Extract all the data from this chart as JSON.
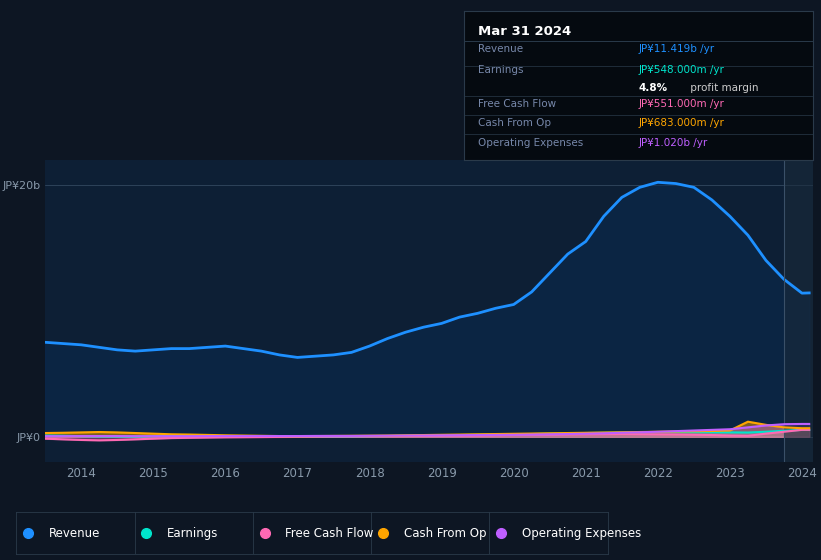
{
  "bg_color": "#0d1623",
  "plot_bg": "#0d1f35",
  "title": "Mar 31 2024",
  "table": {
    "Revenue": {
      "value": "JP¥11.419b /yr",
      "color": "#1e90ff"
    },
    "Earnings": {
      "value": "JP¥548.000m /yr",
      "color": "#00e5cc"
    },
    "profit_margin": "4.8% profit margin",
    "Free Cash Flow": {
      "value": "JP¥551.000m /yr",
      "color": "#ff69b4"
    },
    "Cash From Op": {
      "value": "JP¥683.000m /yr",
      "color": "#ffa500"
    },
    "Operating Expenses": {
      "value": "JP¥1.020b /yr",
      "color": "#bf5fff"
    }
  },
  "years": [
    2013.5,
    2013.75,
    2014.0,
    2014.25,
    2014.5,
    2014.75,
    2015.0,
    2015.25,
    2015.5,
    2015.75,
    2016.0,
    2016.25,
    2016.5,
    2016.75,
    2017.0,
    2017.25,
    2017.5,
    2017.75,
    2018.0,
    2018.25,
    2018.5,
    2018.75,
    2019.0,
    2019.25,
    2019.5,
    2019.75,
    2020.0,
    2020.25,
    2020.5,
    2020.75,
    2021.0,
    2021.25,
    2021.5,
    2021.75,
    2022.0,
    2022.25,
    2022.5,
    2022.75,
    2023.0,
    2023.25,
    2023.5,
    2023.75,
    2024.0,
    2024.1
  ],
  "revenue": [
    7.5,
    7.4,
    7.3,
    7.1,
    6.9,
    6.8,
    6.9,
    7.0,
    7.0,
    7.1,
    7.2,
    7.0,
    6.8,
    6.5,
    6.3,
    6.4,
    6.5,
    6.7,
    7.2,
    7.8,
    8.3,
    8.7,
    9.0,
    9.5,
    9.8,
    10.2,
    10.5,
    11.5,
    13.0,
    14.5,
    15.5,
    17.5,
    19.0,
    19.8,
    20.2,
    20.1,
    19.8,
    18.8,
    17.5,
    16.0,
    14.0,
    12.5,
    11.4,
    11.419
  ],
  "earnings": [
    0.1,
    0.08,
    0.05,
    0.03,
    0.02,
    0.02,
    0.05,
    0.07,
    0.05,
    0.03,
    0.02,
    0.01,
    0.01,
    0.01,
    0.01,
    0.02,
    0.02,
    0.03,
    0.05,
    0.06,
    0.08,
    0.1,
    0.12,
    0.14,
    0.16,
    0.18,
    0.2,
    0.22,
    0.25,
    0.28,
    0.3,
    0.32,
    0.34,
    0.36,
    0.38,
    0.38,
    0.37,
    0.36,
    0.35,
    0.34,
    0.4,
    0.48,
    0.55,
    0.548
  ],
  "free_cash_flow": [
    -0.15,
    -0.2,
    -0.25,
    -0.28,
    -0.25,
    -0.2,
    -0.15,
    -0.1,
    -0.08,
    -0.06,
    -0.04,
    -0.03,
    -0.02,
    -0.01,
    0.0,
    0.01,
    0.02,
    0.03,
    0.04,
    0.05,
    0.06,
    0.07,
    0.08,
    0.09,
    0.1,
    0.12,
    0.14,
    0.15,
    0.16,
    0.18,
    0.19,
    0.2,
    0.21,
    0.2,
    0.19,
    0.18,
    0.16,
    0.14,
    0.1,
    0.08,
    0.25,
    0.4,
    0.55,
    0.551
  ],
  "cash_from_op": [
    0.3,
    0.32,
    0.35,
    0.38,
    0.35,
    0.3,
    0.25,
    0.2,
    0.18,
    0.15,
    0.12,
    0.1,
    0.08,
    0.06,
    0.05,
    0.06,
    0.07,
    0.08,
    0.09,
    0.1,
    0.12,
    0.14,
    0.16,
    0.18,
    0.2,
    0.22,
    0.24,
    0.26,
    0.28,
    0.3,
    0.32,
    0.34,
    0.36,
    0.38,
    0.4,
    0.42,
    0.44,
    0.46,
    0.5,
    1.2,
    0.95,
    0.75,
    0.68,
    0.683
  ],
  "operating_expenses": [
    0.05,
    0.05,
    0.06,
    0.06,
    0.06,
    0.05,
    0.05,
    0.05,
    0.05,
    0.06,
    0.06,
    0.06,
    0.06,
    0.06,
    0.06,
    0.07,
    0.07,
    0.07,
    0.08,
    0.09,
    0.1,
    0.11,
    0.12,
    0.13,
    0.14,
    0.15,
    0.16,
    0.18,
    0.2,
    0.22,
    0.25,
    0.28,
    0.32,
    0.36,
    0.4,
    0.45,
    0.5,
    0.55,
    0.6,
    0.75,
    0.9,
    1.0,
    1.02,
    1.02
  ],
  "revenue_color": "#1e90ff",
  "earnings_color": "#00e5cc",
  "fcf_color": "#ff69b4",
  "cfo_color": "#ffa500",
  "opex_color": "#bf5fff",
  "ylim": [
    -2,
    22
  ],
  "xlabel_years": [
    "2014",
    "2015",
    "2016",
    "2017",
    "2018",
    "2019",
    "2020",
    "2021",
    "2022",
    "2023",
    "2024"
  ],
  "xtick_positions": [
    2014,
    2015,
    2016,
    2017,
    2018,
    2019,
    2020,
    2021,
    2022,
    2023,
    2024
  ],
  "legend_items": [
    {
      "label": "Revenue",
      "color": "#1e90ff"
    },
    {
      "label": "Earnings",
      "color": "#00e5cc"
    },
    {
      "label": "Free Cash Flow",
      "color": "#ff69b4"
    },
    {
      "label": "Cash From Op",
      "color": "#ffa500"
    },
    {
      "label": "Operating Expenses",
      "color": "#bf5fff"
    }
  ]
}
